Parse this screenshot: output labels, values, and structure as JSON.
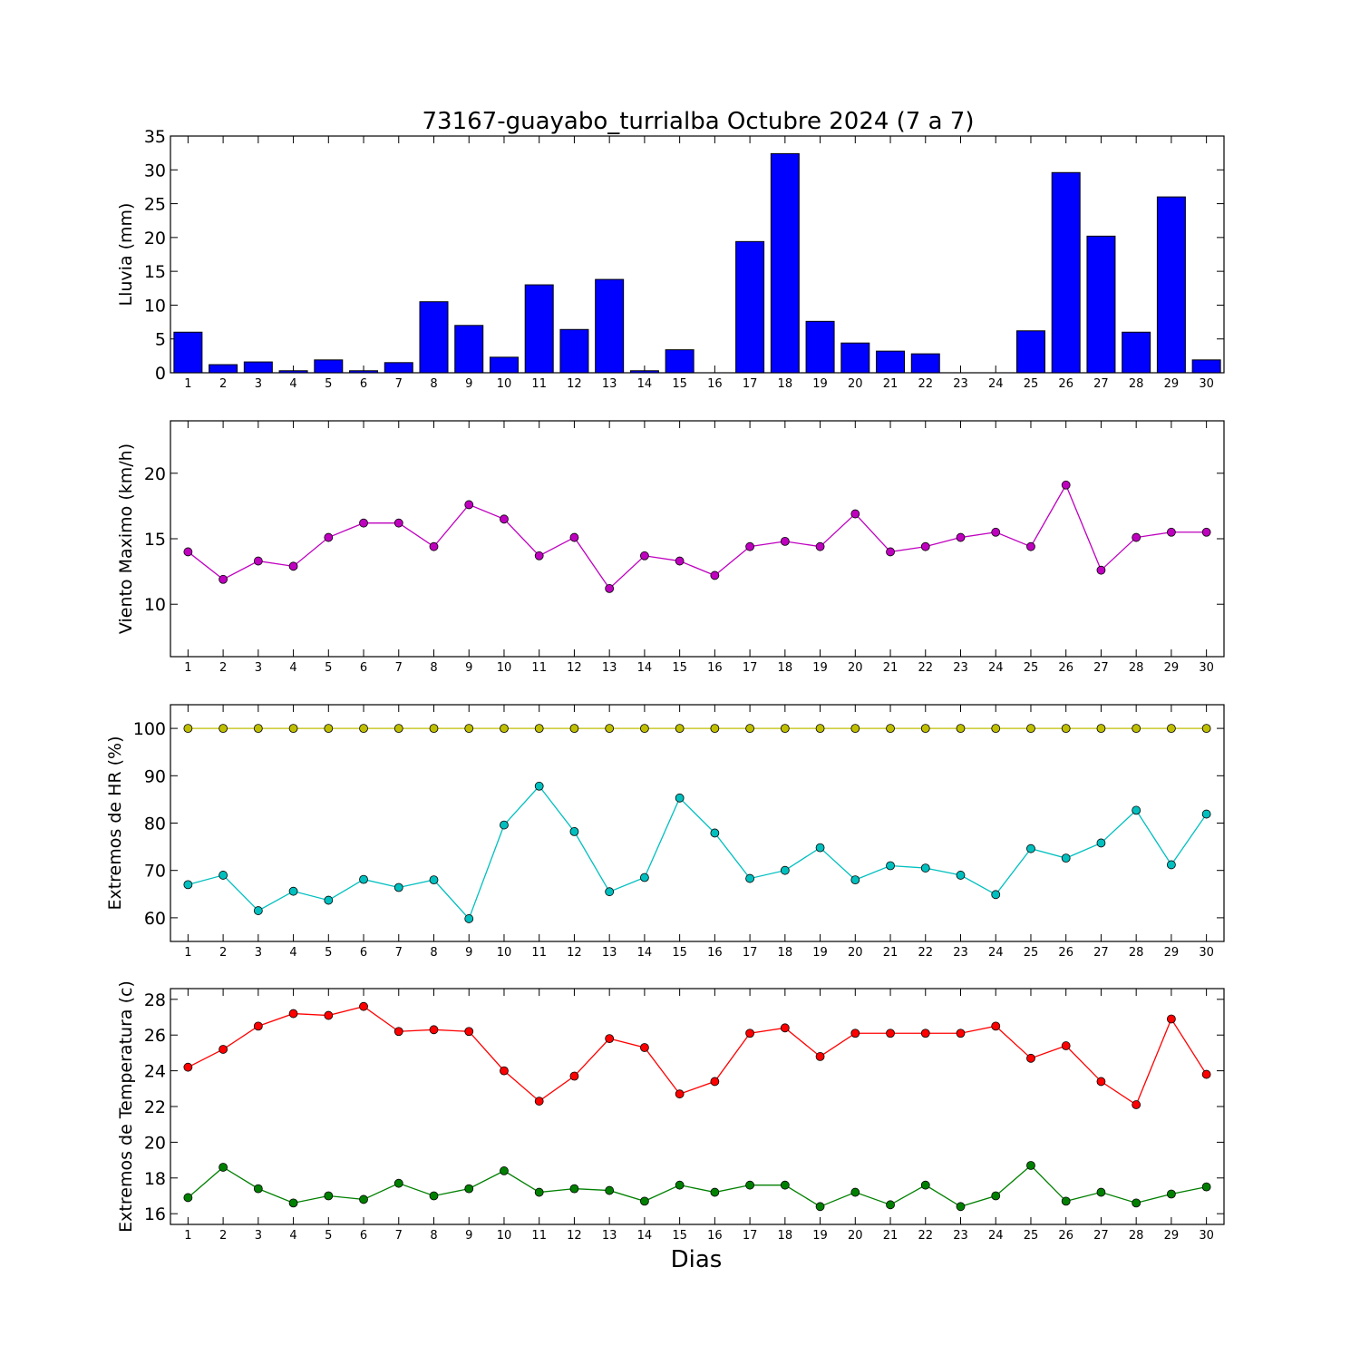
{
  "figure_title": "73167-guayabo_turrialba Octubre 2024  (7 a 7)",
  "xlabel": "Dias",
  "chart_data": [
    {
      "type": "bar",
      "title": "73167-guayabo_turrialba Octubre 2024  (7 a 7)",
      "ylabel": "Lluvia (mm)",
      "xlabel": "",
      "ylim": [
        0,
        35
      ],
      "yticks": [
        0,
        5,
        10,
        15,
        20,
        25,
        30,
        35
      ],
      "grid": false,
      "categories": [
        1,
        2,
        3,
        4,
        5,
        6,
        7,
        8,
        9,
        10,
        11,
        12,
        13,
        14,
        15,
        16,
        17,
        18,
        19,
        20,
        21,
        22,
        23,
        24,
        25,
        26,
        27,
        28,
        29,
        30
      ],
      "values": [
        6.0,
        1.2,
        1.6,
        0.3,
        1.9,
        0.3,
        1.5,
        10.5,
        7.0,
        2.3,
        13.0,
        6.4,
        13.8,
        0.3,
        3.4,
        0,
        19.4,
        32.4,
        7.6,
        4.4,
        3.2,
        2.8,
        0,
        0,
        6.2,
        29.6,
        20.2,
        6.0,
        26.0,
        1.9
      ],
      "color": "#0000ff"
    },
    {
      "type": "line",
      "ylabel": "Viento Maximo (km/h)",
      "ylim": [
        6,
        24
      ],
      "yticks": [
        10,
        15,
        20
      ],
      "grid": false,
      "x": [
        1,
        2,
        3,
        4,
        5,
        6,
        7,
        8,
        9,
        10,
        11,
        12,
        13,
        14,
        15,
        16,
        17,
        18,
        19,
        20,
        21,
        22,
        23,
        24,
        25,
        26,
        27,
        28,
        29,
        30
      ],
      "series": [
        {
          "values": [
            14.0,
            11.9,
            13.3,
            12.9,
            15.1,
            16.2,
            16.2,
            14.4,
            17.6,
            16.5,
            13.7,
            15.1,
            11.2,
            13.7,
            13.3,
            12.2,
            14.4,
            14.8,
            14.4,
            16.9,
            14.0,
            14.4,
            15.1,
            15.5,
            14.4,
            19.1,
            12.6,
            15.1,
            15.5,
            15.5
          ],
          "color": "#bf00bf"
        }
      ]
    },
    {
      "type": "line",
      "ylabel": "Extremos de HR (%)",
      "ylim": [
        55,
        105
      ],
      "yticks": [
        60,
        70,
        80,
        90,
        100
      ],
      "grid": false,
      "x": [
        1,
        2,
        3,
        4,
        5,
        6,
        7,
        8,
        9,
        10,
        11,
        12,
        13,
        14,
        15,
        16,
        17,
        18,
        19,
        20,
        21,
        22,
        23,
        24,
        25,
        26,
        27,
        28,
        29,
        30
      ],
      "series": [
        {
          "values": [
            100,
            100,
            100,
            100,
            100,
            100,
            100,
            100,
            100,
            100,
            100,
            100,
            100,
            100,
            100,
            100,
            100,
            100,
            100,
            100,
            100,
            100,
            100,
            100,
            100,
            100,
            100,
            100,
            100,
            100
          ],
          "color": "#bfbf00"
        },
        {
          "values": [
            67.0,
            69.0,
            61.5,
            65.6,
            63.7,
            68.1,
            66.4,
            68.0,
            59.8,
            79.6,
            87.8,
            78.2,
            65.5,
            68.5,
            85.3,
            77.9,
            68.3,
            70.0,
            74.8,
            68.0,
            71.0,
            70.5,
            69.0,
            64.9,
            74.6,
            72.6,
            75.8,
            82.7,
            71.2,
            81.9
          ],
          "color": "#00bfbf"
        }
      ]
    },
    {
      "type": "line",
      "ylabel": "Extremos de Temperatura (c)",
      "ylim": [
        15.4,
        28.6
      ],
      "yticks": [
        16,
        18,
        20,
        22,
        24,
        26,
        28
      ],
      "grid": false,
      "x": [
        1,
        2,
        3,
        4,
        5,
        6,
        7,
        8,
        9,
        10,
        11,
        12,
        13,
        14,
        15,
        16,
        17,
        18,
        19,
        20,
        21,
        22,
        23,
        24,
        25,
        26,
        27,
        28,
        29,
        30
      ],
      "series": [
        {
          "values": [
            24.2,
            25.2,
            26.5,
            27.2,
            27.1,
            27.6,
            26.2,
            26.3,
            26.2,
            24.0,
            22.3,
            23.7,
            25.8,
            25.3,
            22.7,
            23.4,
            26.1,
            26.4,
            24.8,
            26.1,
            26.1,
            26.1,
            26.1,
            26.5,
            24.7,
            25.4,
            23.4,
            22.1,
            26.9,
            23.8
          ],
          "color": "#ff0000"
        },
        {
          "values": [
            16.9,
            18.6,
            17.4,
            16.6,
            17.0,
            16.8,
            17.7,
            17.0,
            17.4,
            18.4,
            17.2,
            17.4,
            17.3,
            16.7,
            17.6,
            17.2,
            17.6,
            17.6,
            16.4,
            17.2,
            16.5,
            17.6,
            16.4,
            17.0,
            18.7,
            16.7,
            17.2,
            16.6,
            17.1,
            17.5
          ],
          "color": "#008000"
        }
      ]
    }
  ]
}
